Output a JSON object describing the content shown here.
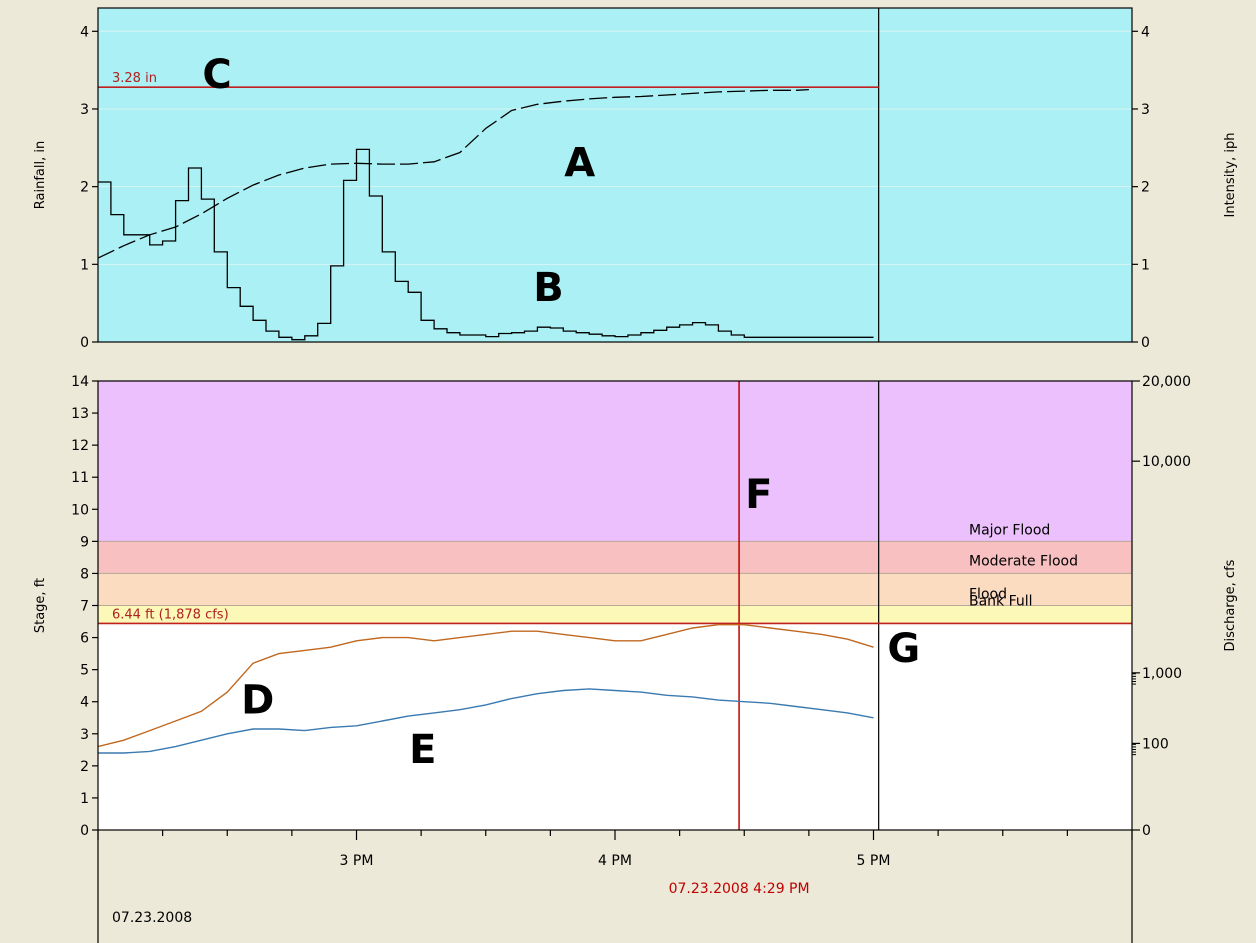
{
  "chart_data": [
    {
      "type": "line",
      "ylabel": "Rainfall, in",
      "y2label": "Intensity, iph",
      "ylim": [
        0,
        4.3
      ],
      "y_ticks": [
        "0",
        "1",
        "2",
        "3",
        "4"
      ],
      "y2_ticks": [
        "0",
        "1",
        "2",
        "3",
        "4"
      ],
      "background": "#aaf0f4",
      "threshold": {
        "value": 3.28,
        "label": "3.28 in",
        "color": "#c02020"
      },
      "series": [
        {
          "style": "dashed",
          "x": [
            14.0,
            14.1,
            14.2,
            14.3,
            14.4,
            14.5,
            14.6,
            14.7,
            14.8,
            14.9,
            15.0,
            15.1,
            15.2,
            15.3,
            15.4,
            15.5,
            15.6,
            15.7,
            15.8,
            15.9,
            16.0,
            16.1,
            16.2,
            16.3,
            16.4,
            16.5,
            16.6,
            16.7,
            16.75
          ],
          "values": [
            1.08,
            1.24,
            1.38,
            1.48,
            1.65,
            1.85,
            2.02,
            2.15,
            2.24,
            2.29,
            2.3,
            2.29,
            2.29,
            2.32,
            2.44,
            2.75,
            2.98,
            3.06,
            3.1,
            3.13,
            3.15,
            3.16,
            3.18,
            3.2,
            3.22,
            3.23,
            3.24,
            3.24,
            3.25
          ]
        },
        {
          "style": "step",
          "x": [
            14.0,
            14.05,
            14.1,
            14.15,
            14.2,
            14.25,
            14.3,
            14.35,
            14.4,
            14.45,
            14.5,
            14.55,
            14.6,
            14.65,
            14.7,
            14.75,
            14.8,
            14.85,
            14.9,
            14.95,
            15.0,
            15.05,
            15.1,
            15.15,
            15.2,
            15.25,
            15.3,
            15.35,
            15.4,
            15.45,
            15.5,
            15.55,
            15.6,
            15.65,
            15.7,
            15.75,
            15.8,
            15.85,
            15.9,
            15.95,
            16.0,
            16.05,
            16.1,
            16.15,
            16.2,
            16.25,
            16.3,
            16.35,
            16.4,
            16.45,
            16.5,
            16.55,
            16.6,
            16.65,
            16.7,
            16.75,
            16.8,
            16.85,
            16.9,
            16.95,
            17.0
          ],
          "values": [
            2.06,
            1.64,
            1.38,
            1.38,
            1.25,
            1.3,
            1.82,
            2.24,
            1.84,
            1.16,
            0.7,
            0.46,
            0.28,
            0.14,
            0.06,
            0.03,
            0.08,
            0.24,
            0.98,
            2.08,
            2.48,
            1.88,
            1.16,
            0.78,
            0.64,
            0.28,
            0.17,
            0.12,
            0.09,
            0.09,
            0.07,
            0.11,
            0.12,
            0.14,
            0.19,
            0.18,
            0.14,
            0.12,
            0.1,
            0.08,
            0.07,
            0.09,
            0.12,
            0.15,
            0.19,
            0.22,
            0.25,
            0.22,
            0.14,
            0.09,
            0.06,
            0.06,
            0.06,
            0.06,
            0.06,
            0.06,
            0.06,
            0.06,
            0.06,
            0.06,
            0.06
          ]
        }
      ]
    },
    {
      "type": "line",
      "ylabel": "Stage, ft",
      "y2label": "Discharge, cfs",
      "ylim": [
        0,
        14
      ],
      "y_ticks": [
        "0",
        "1",
        "2",
        "3",
        "4",
        "5",
        "6",
        "7",
        "8",
        "9",
        "10",
        "11",
        "12",
        "13",
        "14"
      ],
      "y2_ticks": [
        {
          "label": "0",
          "stage": 0
        },
        {
          "label": "100",
          "stage": 2.7
        },
        {
          "label": "1,000",
          "stage": 4.9
        },
        {
          "label": "10,000",
          "stage": 11.5
        },
        {
          "label": "20,000",
          "stage": 14
        }
      ],
      "bands": [
        {
          "label": "Major Flood",
          "from": 9,
          "to": 14,
          "color": "#ecc0fc"
        },
        {
          "label": "Moderate Flood",
          "from": 8,
          "to": 9,
          "color": "#f8c0c0"
        },
        {
          "label": "Flood",
          "from": 7,
          "to": 8,
          "color": "#fcdcc0"
        },
        {
          "label": "Bank Full",
          "from": 6.44,
          "to": 7,
          "color": "#fcf8b8"
        }
      ],
      "threshold": {
        "value": 6.44,
        "label": "6.44 ft (1,878 cfs)",
        "color": "#c02020"
      },
      "series": [
        {
          "color": "#c06820",
          "x": [
            14.0,
            14.1,
            14.2,
            14.3,
            14.4,
            14.5,
            14.6,
            14.7,
            14.8,
            14.9,
            15.0,
            15.1,
            15.2,
            15.3,
            15.4,
            15.5,
            15.6,
            15.7,
            15.8,
            15.9,
            16.0,
            16.1,
            16.2,
            16.3,
            16.4,
            16.5,
            16.6,
            16.7,
            16.8,
            16.9,
            17.0
          ],
          "values": [
            2.6,
            2.8,
            3.1,
            3.4,
            3.7,
            4.3,
            5.2,
            5.5,
            5.6,
            5.7,
            5.9,
            6.0,
            6.0,
            5.9,
            6.0,
            6.1,
            6.2,
            6.2,
            6.1,
            6.0,
            5.9,
            5.9,
            6.1,
            6.3,
            6.4,
            6.4,
            6.3,
            6.2,
            6.1,
            5.95,
            5.7
          ]
        },
        {
          "color": "#3a7ab0",
          "x": [
            14.0,
            14.1,
            14.2,
            14.3,
            14.4,
            14.5,
            14.6,
            14.7,
            14.8,
            14.9,
            15.0,
            15.1,
            15.2,
            15.3,
            15.4,
            15.5,
            15.6,
            15.7,
            15.8,
            15.9,
            16.0,
            16.1,
            16.2,
            16.3,
            16.4,
            16.5,
            16.6,
            16.7,
            16.8,
            16.9,
            17.0
          ],
          "values": [
            2.4,
            2.4,
            2.45,
            2.6,
            2.8,
            3.0,
            3.15,
            3.15,
            3.1,
            3.2,
            3.25,
            3.4,
            3.55,
            3.65,
            3.75,
            3.9,
            4.1,
            4.25,
            4.35,
            4.4,
            4.35,
            4.3,
            4.2,
            4.15,
            4.05,
            4.0,
            3.95,
            3.85,
            3.75,
            3.65,
            3.5
          ]
        }
      ]
    }
  ],
  "time_axis": {
    "xlim": [
      14.0,
      18.0
    ],
    "ticks": [
      {
        "value": 15,
        "label": "3 PM"
      },
      {
        "value": 16,
        "label": "4 PM"
      },
      {
        "value": 17,
        "label": "5 PM"
      }
    ],
    "now_value": 17.02,
    "cursor_value": 16.48,
    "cursor_label": "07.23.2008 4:29 PM",
    "date_label": "07.23.2008"
  },
  "annotations": [
    {
      "label": "A",
      "chart": 0,
      "x": 15.85,
      "y": 2.36
    },
    {
      "label": "B",
      "chart": 0,
      "x": 15.73,
      "y": 0.76
    },
    {
      "label": "C",
      "chart": 0,
      "x": 14.45,
      "y": 3.5
    },
    {
      "label": "D",
      "chart": 1,
      "x": 14.6,
      "y": 4.2
    },
    {
      "label": "E",
      "chart": 1,
      "x": 15.25,
      "y": 2.65
    },
    {
      "label": "F",
      "chart": 1,
      "x": 16.55,
      "y": 10.6
    },
    {
      "label": "G",
      "chart": 1,
      "x": 17.1,
      "y": 5.8
    }
  ],
  "colors": {
    "background": "#ece9d8",
    "plot_bg": "#ffffff",
    "threshold": "#c02020",
    "cursor": "#c00000"
  }
}
